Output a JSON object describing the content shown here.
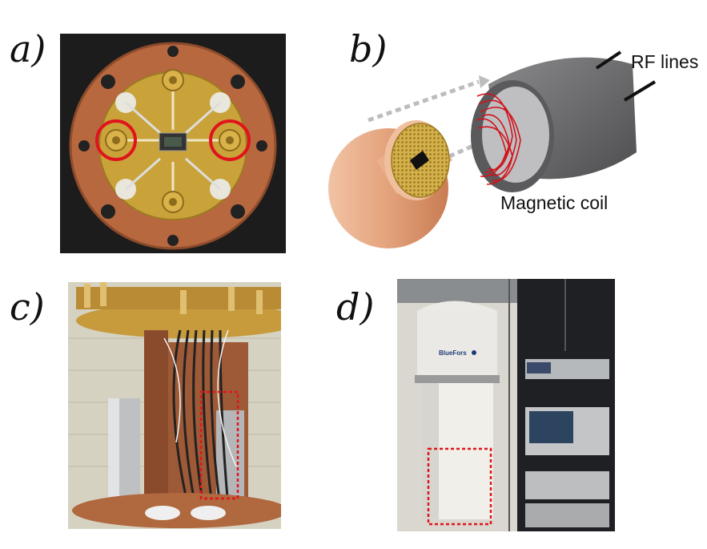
{
  "panels": {
    "a": {
      "label": "a)"
    },
    "b": {
      "label": "b)",
      "rf_label": "RF lines",
      "coil_label": "Magnetic coil"
    },
    "c": {
      "label": "c)"
    },
    "d": {
      "label": "d)",
      "brand_text": "BlueFors"
    }
  },
  "colors": {
    "copper": "#c8784a",
    "gold": "#d4a833",
    "highlight_red": "#e0141c",
    "coil_red": "#d0121a",
    "shield_gray": "#6e6e70",
    "arrow_gray": "#bdbdbd"
  }
}
